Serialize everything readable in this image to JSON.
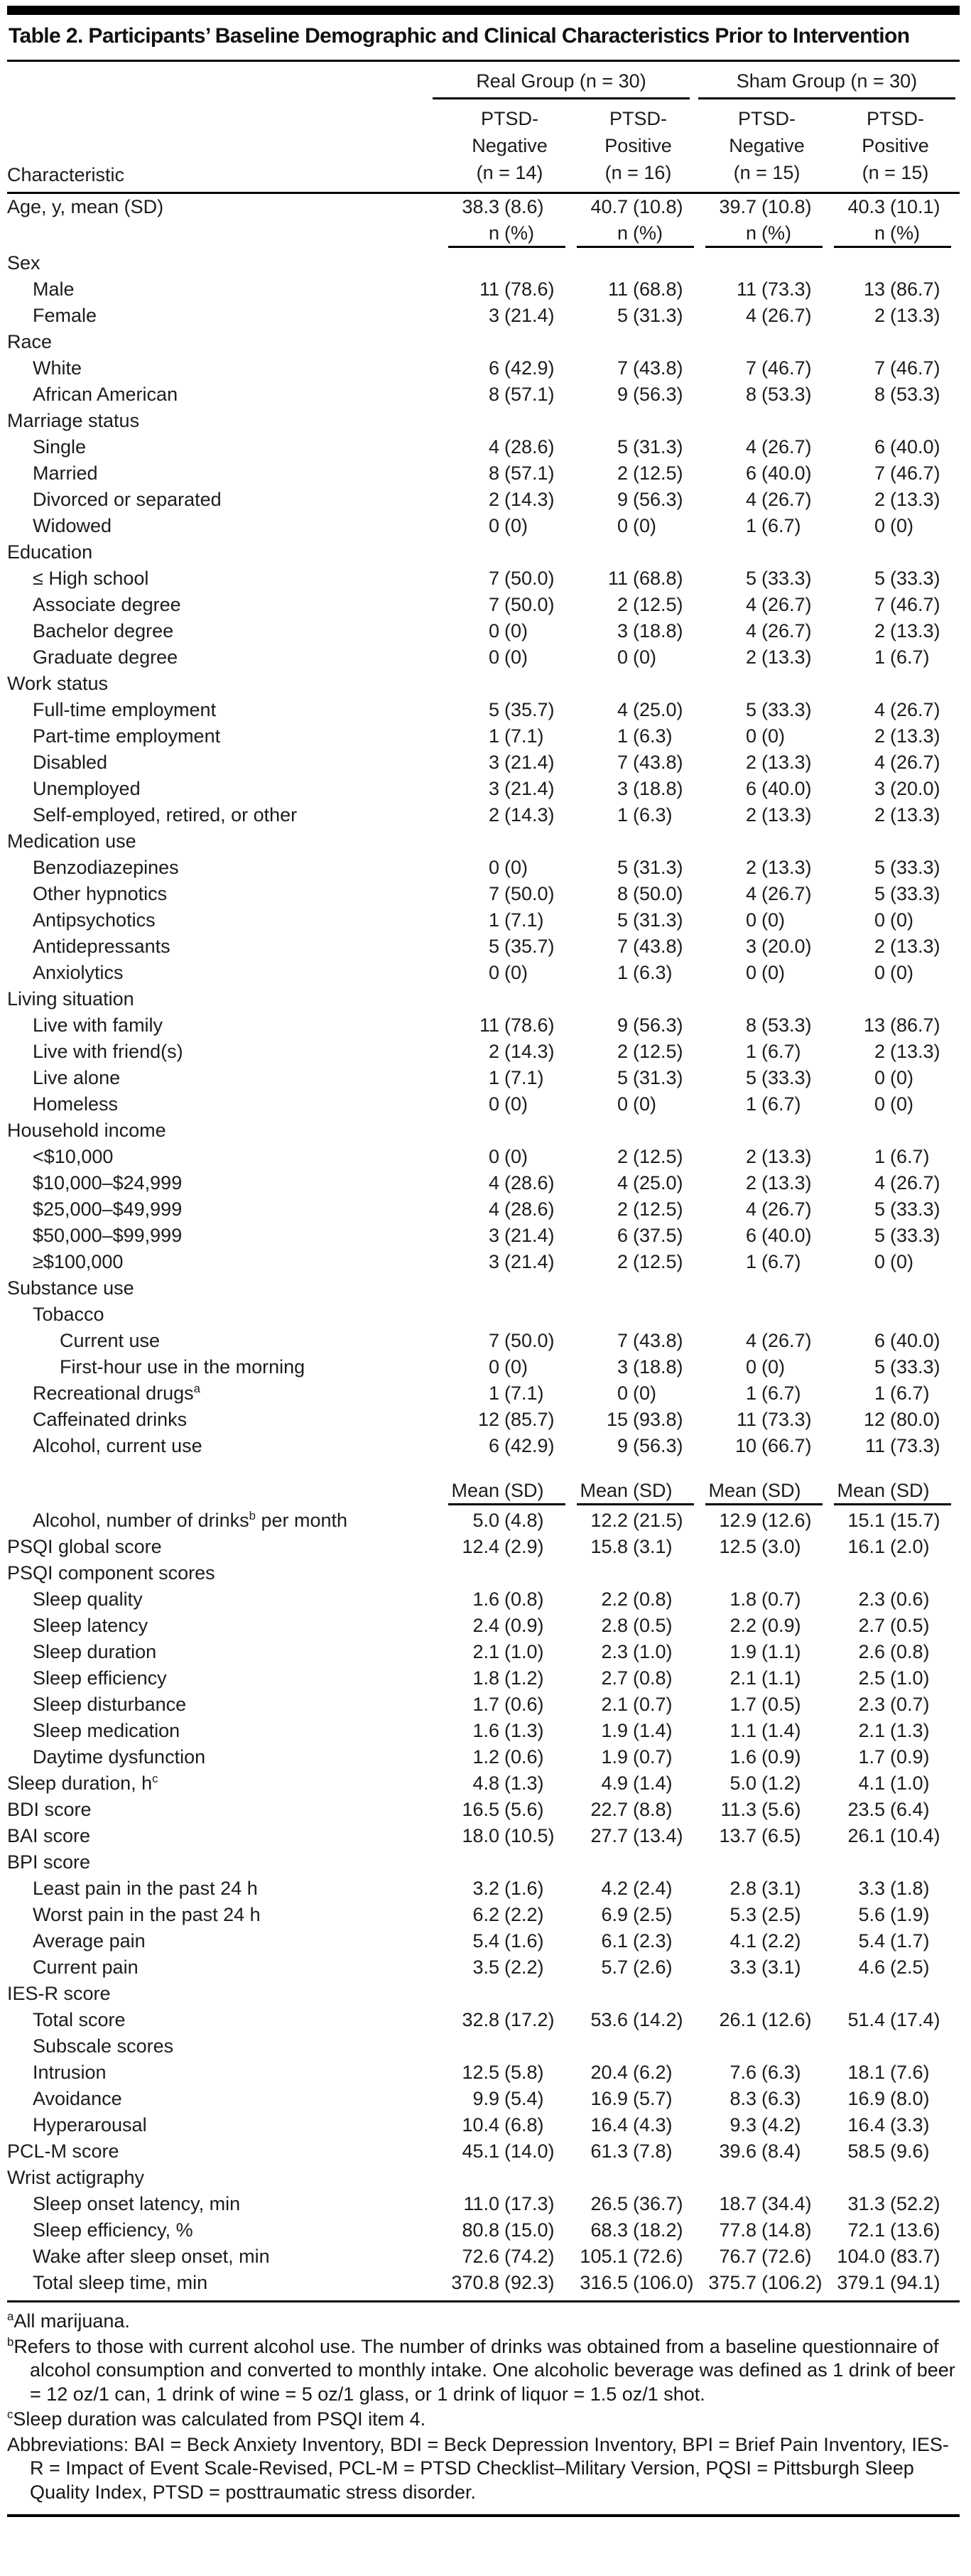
{
  "title": "Table 2. Participants’ Baseline Demographic and Clinical Characteristics Prior to Intervention",
  "header": {
    "characteristic_label": "Characteristic",
    "groups": [
      {
        "label": "Real Group (n = 30)",
        "cols": [
          [
            "PTSD-",
            "Negative",
            "(n = 14)"
          ],
          [
            "PTSD-",
            "Positive",
            "(n = 16)"
          ]
        ]
      },
      {
        "label": "Sham Group (n = 30)",
        "cols": [
          [
            "PTSD-",
            "Negative",
            "(n = 15)"
          ],
          [
            "PTSD-",
            "Positive",
            "(n = 15)"
          ]
        ]
      }
    ]
  },
  "rows": [
    {
      "label": "Age, y, mean (SD)",
      "indent": 0,
      "values": [
        "38.3 (8.6)",
        "40.7 (10.8)",
        "39.7 (10.8)",
        "40.3 (10.1)"
      ]
    },
    {
      "subheader": "n (%)"
    },
    {
      "label": "Sex",
      "indent": 0
    },
    {
      "label": "Male",
      "indent": 1,
      "values": [
        "11 (78.6)",
        "11 (68.8)",
        "11 (73.3)",
        "13 (86.7)"
      ]
    },
    {
      "label": "Female",
      "indent": 1,
      "values": [
        "3 (21.4)",
        "5 (31.3)",
        "4 (26.7)",
        "2 (13.3)"
      ]
    },
    {
      "label": "Race",
      "indent": 0
    },
    {
      "label": "White",
      "indent": 1,
      "values": [
        "6 (42.9)",
        "7 (43.8)",
        "7 (46.7)",
        "7 (46.7)"
      ]
    },
    {
      "label": "African American",
      "indent": 1,
      "values": [
        "8 (57.1)",
        "9 (56.3)",
        "8 (53.3)",
        "8 (53.3)"
      ]
    },
    {
      "label": "Marriage status",
      "indent": 0
    },
    {
      "label": "Single",
      "indent": 1,
      "values": [
        "4 (28.6)",
        "5 (31.3)",
        "4 (26.7)",
        "6 (40.0)"
      ]
    },
    {
      "label": "Married",
      "indent": 1,
      "values": [
        "8 (57.1)",
        "2 (12.5)",
        "6 (40.0)",
        "7 (46.7)"
      ]
    },
    {
      "label": "Divorced or separated",
      "indent": 1,
      "values": [
        "2 (14.3)",
        "9 (56.3)",
        "4 (26.7)",
        "2 (13.3)"
      ]
    },
    {
      "label": "Widowed",
      "indent": 1,
      "values": [
        "0 (0)",
        "0 (0)",
        "1 (6.7)",
        "0 (0)"
      ]
    },
    {
      "label": "Education",
      "indent": 0
    },
    {
      "label": "≤ High school",
      "indent": 1,
      "values": [
        "7 (50.0)",
        "11 (68.8)",
        "5 (33.3)",
        "5 (33.3)"
      ]
    },
    {
      "label": "Associate degree",
      "indent": 1,
      "values": [
        "7 (50.0)",
        "2 (12.5)",
        "4 (26.7)",
        "7 (46.7)"
      ]
    },
    {
      "label": "Bachelor degree",
      "indent": 1,
      "values": [
        "0 (0)",
        "3 (18.8)",
        "4 (26.7)",
        "2 (13.3)"
      ]
    },
    {
      "label": "Graduate degree",
      "indent": 1,
      "values": [
        "0 (0)",
        "0 (0)",
        "2 (13.3)",
        "1 (6.7)"
      ]
    },
    {
      "label": "Work status",
      "indent": 0
    },
    {
      "label": "Full-time employment",
      "indent": 1,
      "values": [
        "5 (35.7)",
        "4 (25.0)",
        "5 (33.3)",
        "4 (26.7)"
      ]
    },
    {
      "label": "Part-time employment",
      "indent": 1,
      "values": [
        "1 (7.1)",
        "1 (6.3)",
        "0 (0)",
        "2 (13.3)"
      ]
    },
    {
      "label": "Disabled",
      "indent": 1,
      "values": [
        "3 (21.4)",
        "7 (43.8)",
        "2 (13.3)",
        "4 (26.7)"
      ]
    },
    {
      "label": "Unemployed",
      "indent": 1,
      "values": [
        "3 (21.4)",
        "3 (18.8)",
        "6 (40.0)",
        "3 (20.0)"
      ]
    },
    {
      "label": "Self-employed, retired, or other",
      "indent": 1,
      "values": [
        "2 (14.3)",
        "1 (6.3)",
        "2 (13.3)",
        "2 (13.3)"
      ]
    },
    {
      "label": "Medication use",
      "indent": 0
    },
    {
      "label": "Benzodiazepines",
      "indent": 1,
      "values": [
        "0 (0)",
        "5 (31.3)",
        "2 (13.3)",
        "5 (33.3)"
      ]
    },
    {
      "label": "Other hypnotics",
      "indent": 1,
      "values": [
        "7 (50.0)",
        "8 (50.0)",
        "4 (26.7)",
        "5 (33.3)"
      ]
    },
    {
      "label": "Antipsychotics",
      "indent": 1,
      "values": [
        "1 (7.1)",
        "5 (31.3)",
        "0 (0)",
        "0 (0)"
      ]
    },
    {
      "label": "Antidepressants",
      "indent": 1,
      "values": [
        "5 (35.7)",
        "7 (43.8)",
        "3 (20.0)",
        "2 (13.3)"
      ]
    },
    {
      "label": "Anxiolytics",
      "indent": 1,
      "values": [
        "0 (0)",
        "1 (6.3)",
        "0 (0)",
        "0 (0)"
      ]
    },
    {
      "label": "Living situation",
      "indent": 0
    },
    {
      "label": "Live with family",
      "indent": 1,
      "values": [
        "11 (78.6)",
        "9 (56.3)",
        "8 (53.3)",
        "13 (86.7)"
      ]
    },
    {
      "label": "Live with friend(s)",
      "indent": 1,
      "values": [
        "2 (14.3)",
        "2 (12.5)",
        "1 (6.7)",
        "2 (13.3)"
      ]
    },
    {
      "label": "Live alone",
      "indent": 1,
      "values": [
        "1 (7.1)",
        "5 (31.3)",
        "5 (33.3)",
        "0 (0)"
      ]
    },
    {
      "label": "Homeless",
      "indent": 1,
      "values": [
        "0 (0)",
        "0 (0)",
        "1 (6.7)",
        "0 (0)"
      ]
    },
    {
      "label": "Household income",
      "indent": 0
    },
    {
      "label": "<$10,000",
      "indent": 1,
      "values": [
        "0 (0)",
        "2 (12.5)",
        "2 (13.3)",
        "1 (6.7)"
      ]
    },
    {
      "label": "$10,000–$24,999",
      "indent": 1,
      "values": [
        "4 (28.6)",
        "4 (25.0)",
        "2 (13.3)",
        "4 (26.7)"
      ]
    },
    {
      "label": "$25,000–$49,999",
      "indent": 1,
      "values": [
        "4 (28.6)",
        "2 (12.5)",
        "4 (26.7)",
        "5 (33.3)"
      ]
    },
    {
      "label": "$50,000–$99,999",
      "indent": 1,
      "values": [
        "3 (21.4)",
        "6 (37.5)",
        "6 (40.0)",
        "5 (33.3)"
      ]
    },
    {
      "label": "≥$100,000",
      "indent": 1,
      "values": [
        "3 (21.4)",
        "2 (12.5)",
        "1 (6.7)",
        "0 (0)"
      ]
    },
    {
      "label": "Substance use",
      "indent": 0
    },
    {
      "label": "Tobacco",
      "indent": 1
    },
    {
      "label": "Current use",
      "indent": 2,
      "values": [
        "7 (50.0)",
        "7 (43.8)",
        "4 (26.7)",
        "6 (40.0)"
      ]
    },
    {
      "label": "First-hour use in the morning",
      "indent": 2,
      "values": [
        "0 (0)",
        "3 (18.8)",
        "0 (0)",
        "5 (33.3)"
      ]
    },
    {
      "label": "Recreational drugs^a^",
      "indent": 1,
      "values": [
        "1 (7.1)",
        "0 (0)",
        "1 (6.7)",
        "1 (6.7)"
      ]
    },
    {
      "label": "Caffeinated drinks",
      "indent": 1,
      "values": [
        "12 (85.7)",
        "15 (93.8)",
        "11 (73.3)",
        "12 (80.0)"
      ]
    },
    {
      "label": "Alcohol, current use",
      "indent": 1,
      "values": [
        "6 (42.9)",
        "9 (56.3)",
        "10 (66.7)",
        "11 (73.3)"
      ]
    },
    {
      "subheader": "Mean (SD)",
      "gap": true
    },
    {
      "label": "Alcohol, number of drinks^b^ per month",
      "indent": 1,
      "values": [
        "5.0 (4.8)",
        "12.2 (21.5)",
        "12.9 (12.6)",
        "15.1 (15.7)"
      ]
    },
    {
      "label": "PSQI global score",
      "indent": 0,
      "values": [
        "12.4 (2.9)",
        "15.8 (3.1)",
        "12.5 (3.0)",
        "16.1 (2.0)"
      ]
    },
    {
      "label": "PSQI component scores",
      "indent": 0
    },
    {
      "label": "Sleep quality",
      "indent": 1,
      "values": [
        "1.6 (0.8)",
        "2.2 (0.8)",
        "1.8 (0.7)",
        "2.3 (0.6)"
      ]
    },
    {
      "label": "Sleep latency",
      "indent": 1,
      "values": [
        "2.4 (0.9)",
        "2.8 (0.5)",
        "2.2 (0.9)",
        "2.7 (0.5)"
      ]
    },
    {
      "label": "Sleep duration",
      "indent": 1,
      "values": [
        "2.1 (1.0)",
        "2.3 (1.0)",
        "1.9 (1.1)",
        "2.6 (0.8)"
      ]
    },
    {
      "label": "Sleep efficiency",
      "indent": 1,
      "values": [
        "1.8 (1.2)",
        "2.7 (0.8)",
        "2.1 (1.1)",
        "2.5 (1.0)"
      ]
    },
    {
      "label": "Sleep disturbance",
      "indent": 1,
      "values": [
        "1.7 (0.6)",
        "2.1 (0.7)",
        "1.7 (0.5)",
        "2.3 (0.7)"
      ]
    },
    {
      "label": "Sleep medication",
      "indent": 1,
      "values": [
        "1.6 (1.3)",
        "1.9 (1.4)",
        "1.1 (1.4)",
        "2.1 (1.3)"
      ]
    },
    {
      "label": "Daytime dysfunction",
      "indent": 1,
      "values": [
        "1.2 (0.6)",
        "1.9 (0.7)",
        "1.6 (0.9)",
        "1.7 (0.9)"
      ]
    },
    {
      "label": "Sleep duration, h^c^",
      "indent": 0,
      "values": [
        "4.8 (1.3)",
        "4.9 (1.4)",
        "5.0 (1.2)",
        "4.1 (1.0)"
      ]
    },
    {
      "label": "BDI score",
      "indent": 0,
      "values": [
        "16.5 (5.6)",
        "22.7 (8.8)",
        "11.3 (5.6)",
        "23.5 (6.4)"
      ]
    },
    {
      "label": "BAI score",
      "indent": 0,
      "values": [
        "18.0 (10.5)",
        "27.7 (13.4)",
        "13.7 (6.5)",
        "26.1 (10.4)"
      ]
    },
    {
      "label": "BPI score",
      "indent": 0
    },
    {
      "label": "Least pain in the past 24 h",
      "indent": 1,
      "values": [
        "3.2 (1.6)",
        "4.2 (2.4)",
        "2.8 (3.1)",
        "3.3 (1.8)"
      ]
    },
    {
      "label": "Worst pain in the past 24 h",
      "indent": 1,
      "values": [
        "6.2 (2.2)",
        "6.9 (2.5)",
        "5.3 (2.5)",
        "5.6 (1.9)"
      ]
    },
    {
      "label": "Average pain",
      "indent": 1,
      "values": [
        "5.4 (1.6)",
        "6.1 (2.3)",
        "4.1 (2.2)",
        "5.4 (1.7)"
      ]
    },
    {
      "label": "Current pain",
      "indent": 1,
      "values": [
        "3.5 (2.2)",
        "5.7 (2.6)",
        "3.3 (3.1)",
        "4.6 (2.5)"
      ]
    },
    {
      "label": "IES-R score",
      "indent": 0
    },
    {
      "label": "Total score",
      "indent": 1,
      "values": [
        "32.8 (17.2)",
        "53.6 (14.2)",
        "26.1 (12.6)",
        "51.4 (17.4)"
      ]
    },
    {
      "label": "Subscale scores",
      "indent": 1
    },
    {
      "label": "Intrusion",
      "indent": 1,
      "values": [
        "12.5 (5.8)",
        "20.4 (6.2)",
        "7.6 (6.3)",
        "18.1 (7.6)"
      ]
    },
    {
      "label": "Avoidance",
      "indent": 1,
      "values": [
        "9.9 (5.4)",
        "16.9 (5.7)",
        "8.3 (6.3)",
        "16.9 (8.0)"
      ]
    },
    {
      "label": "Hyperarousal",
      "indent": 1,
      "values": [
        "10.4 (6.8)",
        "16.4 (4.3)",
        "9.3 (4.2)",
        "16.4 (3.3)"
      ]
    },
    {
      "label": "PCL-M score",
      "indent": 0,
      "values": [
        "45.1 (14.0)",
        "61.3 (7.8)",
        "39.6 (8.4)",
        "58.5 (9.6)"
      ]
    },
    {
      "label": "Wrist actigraphy",
      "indent": 0
    },
    {
      "label": "Sleep onset latency, min",
      "indent": 1,
      "values": [
        "11.0 (17.3)",
        "26.5 (36.7)",
        "18.7 (34.4)",
        "31.3 (52.2)"
      ]
    },
    {
      "label": "Sleep efficiency, %",
      "indent": 1,
      "values": [
        "80.8 (15.0)",
        "68.3 (18.2)",
        "77.8 (14.8)",
        "72.1 (13.6)"
      ]
    },
    {
      "label": "Wake after sleep onset, min",
      "indent": 1,
      "values": [
        "72.6 (74.2)",
        "105.1 (72.6)",
        "76.7 (72.6)",
        "104.0 (83.7)"
      ]
    },
    {
      "label": "Total sleep time, min",
      "indent": 1,
      "values": [
        "370.8 (92.3)",
        "316.5 (106.0)",
        "375.7 (106.2)",
        "379.1 (94.1)"
      ]
    }
  ],
  "footnotes": [
    {
      "sup": "a",
      "text": "All marijuana."
    },
    {
      "sup": "b",
      "text": "Refers to those with current alcohol use. The number of drinks was obtained from a baseline questionnaire of alcohol consumption and converted to monthly intake. One alcoholic beverage was defined as 1 drink of beer = 12 oz/1 can, 1 drink of wine = 5 oz/1 glass, or 1 drink of liquor = 1.5 oz/1 shot."
    },
    {
      "sup": "c",
      "text": "Sleep duration was calculated from PSQI item 4."
    },
    {
      "text": "Abbreviations: BAI = Beck Anxiety Inventory, BDI = Beck Depression Inventory, BPI = Brief Pain Inventory, IES-R = Impact of Event Scale-Revised, PCL-M = PTSD Checklist–Military Version, PQSI = Pittsburgh Sleep Quality Index, PTSD = posttraumatic stress disorder."
    }
  ]
}
